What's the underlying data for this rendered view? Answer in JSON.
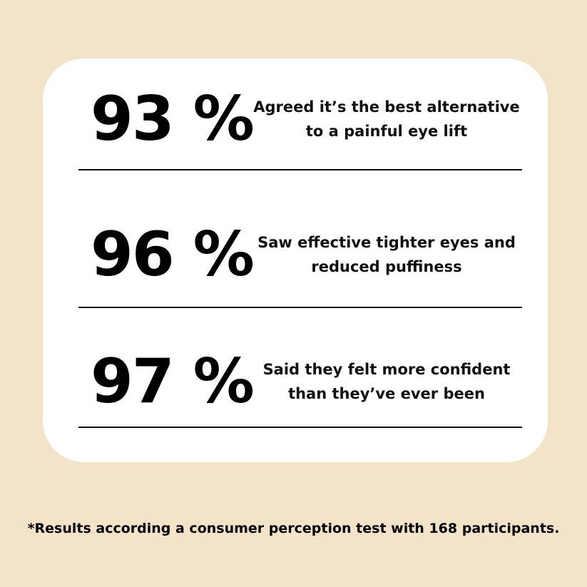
{
  "stats": [
    {
      "value": "93 %",
      "text": "Agreed it’s the best alternative to a painful eye lift"
    },
    {
      "value": "96 %",
      "text": "Saw effective tighter eyes and reduced puffiness"
    },
    {
      "value": "97 %",
      "text": "Said they felt more confident than they’ve ever been"
    }
  ],
  "footnote": "*Results according a consumer perception test with 168 participants.",
  "colors": {
    "background": "#f3e3c9",
    "card": "#ffffff",
    "text": "#000000"
  }
}
